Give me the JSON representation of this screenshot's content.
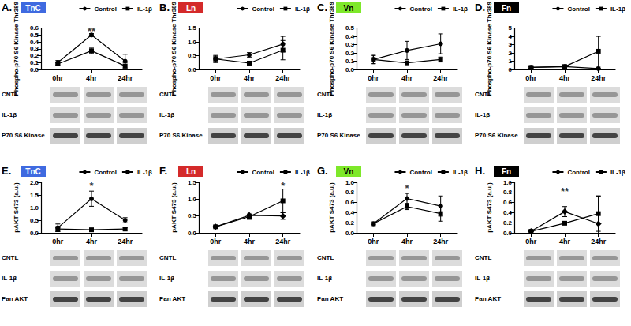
{
  "chart_data": [
    {
      "type": "line",
      "panel_label": "A.",
      "tag": "TnC",
      "color": "#3f6ae0",
      "y_label": "Phospho-p70 S6 Kinase Thr389",
      "categories": [
        "0hr",
        "4hr",
        "24hr"
      ],
      "ylim": [
        0,
        0.6
      ],
      "yticks": [
        {
          "value": 0,
          "label": "0.0"
        },
        0.1,
        0.2,
        0.3,
        0.4,
        0.5,
        0.6
      ],
      "legend": "upper right",
      "series": [
        {
          "name": "Control",
          "color": "#000000",
          "marker": "circle",
          "values": [
            0.1,
            0.5,
            0.12
          ],
          "errors": [
            0.03,
            0.02,
            0.1
          ]
        },
        {
          "name": "IL-1β",
          "color": "#000000",
          "marker": "square",
          "values": [
            0.08,
            0.27,
            0.05
          ],
          "errors": [
            0.02,
            0.04,
            0.05
          ]
        }
      ],
      "annotations": [
        {
          "text": "**",
          "x": "4hr",
          "y": 0.55
        }
      ],
      "blot_rows": [
        "CNTL",
        "IL-1β",
        "P70 S6 Kinase"
      ]
    },
    {
      "type": "line",
      "panel_label": "B.",
      "tag": "Ln",
      "color": "#d42a2a",
      "y_label": "Phospho-p70 S6 Kinase Thr389",
      "categories": [
        "0hr",
        "4hr",
        "24hr"
      ],
      "ylim": [
        0,
        1.5
      ],
      "yticks": [
        {
          "value": 0,
          "label": "0.0"
        },
        0.5,
        {
          "value": 1,
          "label": "1.0"
        },
        1.5
      ],
      "legend": "upper right",
      "series": [
        {
          "name": "Control",
          "color": "#000000",
          "marker": "circle",
          "values": [
            0.38,
            0.53,
            0.92
          ],
          "errors": [
            0.13,
            0.08,
            0.28
          ]
        },
        {
          "name": "IL-1β",
          "color": "#000000",
          "marker": "square",
          "values": [
            0.38,
            0.23,
            0.7
          ],
          "errors": [
            0.1,
            0.05,
            0.35
          ]
        }
      ],
      "annotations": [],
      "blot_rows": [
        "CNTL",
        "IL-1β",
        "P70 S6 Kinase"
      ]
    },
    {
      "type": "line",
      "panel_label": "C.",
      "tag": "Vn",
      "color": "#7ee82a",
      "y_label": "Phospho-p70 S6 Kinase Thr389",
      "categories": [
        "0hr",
        "4hr",
        "24hr"
      ],
      "ylim": [
        0,
        0.5
      ],
      "yticks": [
        {
          "value": 0,
          "label": "0.0"
        },
        0.1,
        0.2,
        0.3,
        0.4,
        0.5
      ],
      "legend": "upper right",
      "series": [
        {
          "name": "Control",
          "color": "#000000",
          "marker": "circle",
          "values": [
            0.12,
            0.23,
            0.31
          ],
          "errors": [
            0.05,
            0.11,
            0.12
          ]
        },
        {
          "name": "IL-1β",
          "color": "#000000",
          "marker": "square",
          "values": [
            0.12,
            0.08,
            0.12
          ],
          "errors": [
            0.05,
            0.02,
            0.03
          ]
        }
      ],
      "annotations": [],
      "blot_rows": [
        "CNTL",
        "IL-1β",
        "P70 S6 Kinase"
      ]
    },
    {
      "type": "line",
      "panel_label": "D.",
      "tag": "Fn",
      "color": "#000000",
      "y_label": "Phospho-p70 S6 Kinase Thr389",
      "categories": [
        "0hr",
        "4hr",
        "24hr"
      ],
      "ylim": [
        0,
        5
      ],
      "yticks": [
        0,
        1,
        2,
        3,
        4,
        5
      ],
      "legend": "upper right",
      "series": [
        {
          "name": "Control",
          "color": "#000000",
          "marker": "circle",
          "values": [
            0.25,
            0.35,
            0.1
          ],
          "errors": [
            0.1,
            0.05,
            0.05
          ]
        },
        {
          "name": "IL-1β",
          "color": "#000000",
          "marker": "square",
          "values": [
            0.25,
            0.35,
            2.2
          ],
          "errors": [
            0.1,
            0.05,
            1.8
          ]
        }
      ],
      "annotations": [],
      "blot_rows": [
        "CNTL",
        "IL-1β",
        "P70 S6 Kinase"
      ]
    },
    {
      "type": "line",
      "panel_label": "E.",
      "tag": "TnC",
      "color": "#3f6ae0",
      "y_label": "pAKT S473 (a.u.)",
      "categories": [
        "0hr",
        "4hr",
        "24hr"
      ],
      "ylim": [
        0,
        2
      ],
      "yticks": [
        {
          "value": 0,
          "label": "0.0"
        },
        0.5,
        {
          "value": 1,
          "label": "1.0"
        },
        1.5,
        {
          "value": 2,
          "label": "2.0"
        }
      ],
      "legend": "upper right",
      "series": [
        {
          "name": "Control",
          "color": "#000000",
          "marker": "circle",
          "values": [
            0.2,
            1.35,
            0.5
          ],
          "errors": [
            0.15,
            0.3,
            0.1
          ]
        },
        {
          "name": "IL-1β",
          "color": "#000000",
          "marker": "square",
          "values": [
            0.15,
            0.12,
            0.15
          ],
          "errors": [
            0.1,
            0.05,
            0.05
          ]
        }
      ],
      "annotations": [
        {
          "text": "*",
          "x": "4hr",
          "y": 1.85
        }
      ],
      "blot_rows": [
        "CNTL",
        "IL-1β",
        "Pan AKT"
      ]
    },
    {
      "type": "line",
      "panel_label": "F.",
      "tag": "Ln",
      "color": "#d42a2a",
      "y_label": "pAKT S473 (a.u.)",
      "categories": [
        "0hr",
        "4hr",
        "24hr"
      ],
      "ylim": [
        0,
        1.5
      ],
      "yticks": [
        {
          "value": 0,
          "label": "0.0"
        },
        0.5,
        {
          "value": 1,
          "label": "1.0"
        },
        1.5
      ],
      "legend": "upper right",
      "series": [
        {
          "name": "Control",
          "color": "#000000",
          "marker": "diamond",
          "values": [
            0.18,
            0.52,
            0.5
          ],
          "errors": [
            0.03,
            0.1,
            0.1
          ]
        },
        {
          "name": "IL-1β",
          "color": "#000000",
          "marker": "square",
          "values": [
            0.18,
            0.48,
            0.95
          ],
          "errors": [
            0.03,
            0.08,
            0.35
          ]
        }
      ],
      "annotations": [
        {
          "text": "*",
          "x": "24hr",
          "y": 1.4
        }
      ],
      "blot_rows": [
        "CNTL",
        "IL-1β",
        "Pan AKT"
      ]
    },
    {
      "type": "line",
      "panel_label": "G.",
      "tag": "Vn",
      "color": "#7ee82a",
      "y_label": "pAKT S473 (a.u.)",
      "categories": [
        "0hr",
        "4hr",
        "24hr"
      ],
      "ylim": [
        0,
        1
      ],
      "yticks": [
        {
          "value": 0,
          "label": "0.0"
        },
        0.2,
        0.4,
        0.6,
        0.8,
        {
          "value": 1,
          "label": "1.0"
        }
      ],
      "legend": "upper right",
      "series": [
        {
          "name": "Control",
          "color": "#000000",
          "marker": "circle",
          "values": [
            0.18,
            0.68,
            0.53
          ],
          "errors": [
            0.02,
            0.1,
            0.2
          ]
        },
        {
          "name": "IL-1β",
          "color": "#000000",
          "marker": "square",
          "values": [
            0.18,
            0.52,
            0.38
          ],
          "errors": [
            0.02,
            0.06,
            0.15
          ]
        }
      ],
      "annotations": [
        {
          "text": "*",
          "x": "4hr",
          "y": 0.88
        }
      ],
      "blot_rows": [
        "CNTL",
        "IL-1β",
        "Pan AKT"
      ]
    },
    {
      "type": "line",
      "panel_label": "H.",
      "tag": "Fn",
      "color": "#000000",
      "y_label": "pAKT S473 (a.u.)",
      "categories": [
        "0hr",
        "4hr",
        "24hr"
      ],
      "ylim": [
        0,
        1
      ],
      "yticks": [
        {
          "value": 0,
          "label": "0.0"
        },
        0.2,
        0.4,
        0.6,
        0.8,
        {
          "value": 1,
          "label": "1.0"
        }
      ],
      "legend": "upper right",
      "series": [
        {
          "name": "Control",
          "color": "#000000",
          "marker": "diamond",
          "values": [
            0.03,
            0.42,
            0.18
          ],
          "errors": [
            0.01,
            0.1,
            0.55
          ]
        },
        {
          "name": "IL-1β",
          "color": "#000000",
          "marker": "square",
          "values": [
            0.03,
            0.19,
            0.38
          ],
          "errors": [
            0.01,
            0.02,
            0.35
          ]
        }
      ],
      "annotations": [
        {
          "text": "**",
          "x": "4hr",
          "y": 0.82
        }
      ],
      "blot_rows": [
        "CNTL",
        "IL-1β",
        "Pan AKT"
      ]
    }
  ]
}
